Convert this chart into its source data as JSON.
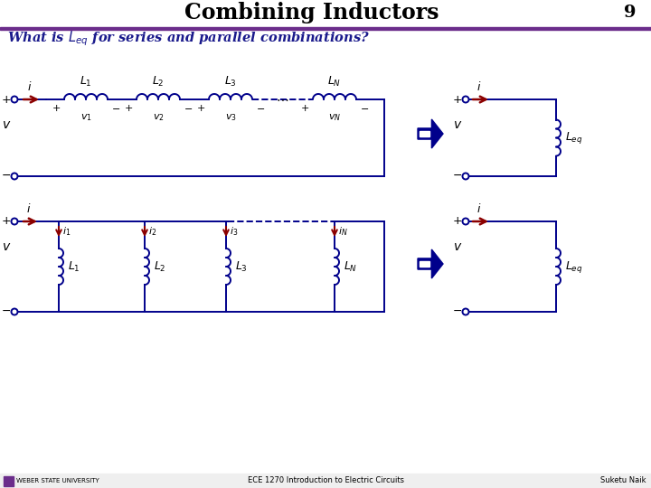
{
  "title": "Combining Inductors",
  "title_number": "9",
  "subtitle": "What is $L_{eq}$ for series and parallel combinations?",
  "bg_color": "#FFFFFF",
  "header_line_color": "#6B2D8B",
  "dark_blue": "#00008B",
  "red_arrow": "#8B0000",
  "footer_left": "ECE 1270 Introduction to Electric Circuits",
  "footer_right": "Suketu Naik",
  "footer_university": "WEBER STATE UNIVERSITY"
}
